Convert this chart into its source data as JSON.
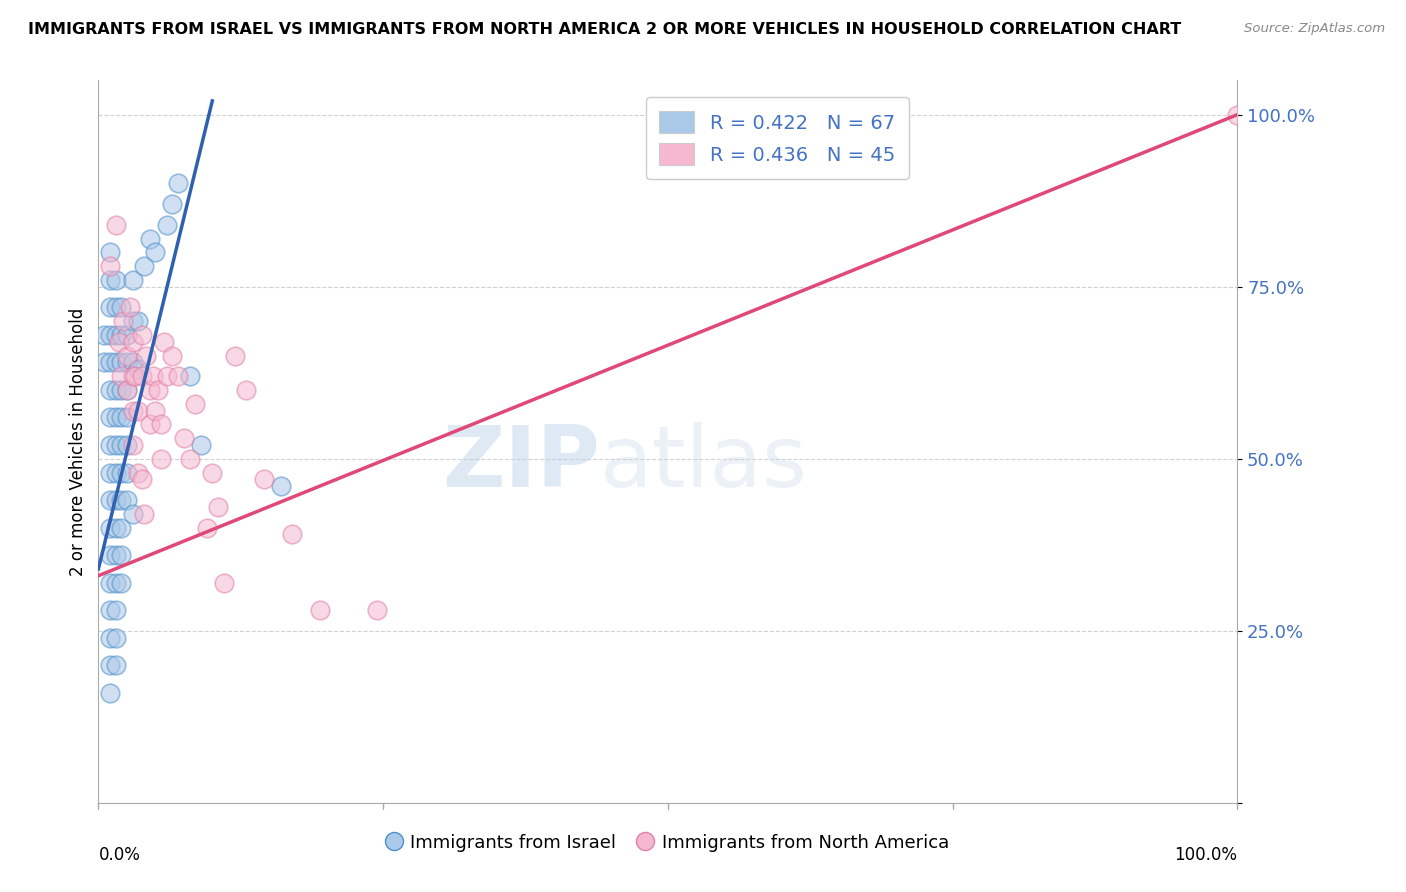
{
  "title": "IMMIGRANTS FROM ISRAEL VS IMMIGRANTS FROM NORTH AMERICA 2 OR MORE VEHICLES IN HOUSEHOLD CORRELATION CHART",
  "source": "Source: ZipAtlas.com",
  "ylabel": "2 or more Vehicles in Household",
  "watermark_zip": "ZIP",
  "watermark_atlas": "atlas",
  "legend1_label": "R = 0.422   N = 67",
  "legend2_label": "R = 0.436   N = 45",
  "legend1_color": "#aac8e8",
  "legend2_color": "#f5b8d0",
  "line1_color": "#3060b0",
  "line2_color": "#e04878",
  "scatter1_facecolor": "#aac8e8",
  "scatter2_facecolor": "#f5b8d0",
  "scatter1_edgecolor": "#5090c8",
  "scatter2_edgecolor": "#e080a8",
  "ytick_color": "#4472c4",
  "blue_points": [
    [
      0.005,
      0.68
    ],
    [
      0.005,
      0.64
    ],
    [
      0.01,
      0.8
    ],
    [
      0.01,
      0.76
    ],
    [
      0.01,
      0.72
    ],
    [
      0.01,
      0.68
    ],
    [
      0.01,
      0.64
    ],
    [
      0.01,
      0.6
    ],
    [
      0.01,
      0.56
    ],
    [
      0.01,
      0.52
    ],
    [
      0.01,
      0.48
    ],
    [
      0.01,
      0.44
    ],
    [
      0.01,
      0.4
    ],
    [
      0.01,
      0.36
    ],
    [
      0.01,
      0.32
    ],
    [
      0.01,
      0.28
    ],
    [
      0.01,
      0.24
    ],
    [
      0.01,
      0.2
    ],
    [
      0.01,
      0.16
    ],
    [
      0.015,
      0.76
    ],
    [
      0.015,
      0.72
    ],
    [
      0.015,
      0.68
    ],
    [
      0.015,
      0.64
    ],
    [
      0.015,
      0.6
    ],
    [
      0.015,
      0.56
    ],
    [
      0.015,
      0.52
    ],
    [
      0.015,
      0.48
    ],
    [
      0.015,
      0.44
    ],
    [
      0.015,
      0.4
    ],
    [
      0.015,
      0.36
    ],
    [
      0.015,
      0.32
    ],
    [
      0.015,
      0.28
    ],
    [
      0.015,
      0.24
    ],
    [
      0.015,
      0.2
    ],
    [
      0.02,
      0.72
    ],
    [
      0.02,
      0.68
    ],
    [
      0.02,
      0.64
    ],
    [
      0.02,
      0.6
    ],
    [
      0.02,
      0.56
    ],
    [
      0.02,
      0.52
    ],
    [
      0.02,
      0.48
    ],
    [
      0.02,
      0.44
    ],
    [
      0.02,
      0.4
    ],
    [
      0.02,
      0.36
    ],
    [
      0.02,
      0.32
    ],
    [
      0.025,
      0.68
    ],
    [
      0.025,
      0.64
    ],
    [
      0.025,
      0.6
    ],
    [
      0.025,
      0.56
    ],
    [
      0.025,
      0.52
    ],
    [
      0.025,
      0.48
    ],
    [
      0.025,
      0.44
    ],
    [
      0.03,
      0.76
    ],
    [
      0.03,
      0.7
    ],
    [
      0.03,
      0.64
    ],
    [
      0.03,
      0.42
    ],
    [
      0.035,
      0.7
    ],
    [
      0.035,
      0.63
    ],
    [
      0.04,
      0.78
    ],
    [
      0.045,
      0.82
    ],
    [
      0.05,
      0.8
    ],
    [
      0.06,
      0.84
    ],
    [
      0.065,
      0.87
    ],
    [
      0.07,
      0.9
    ],
    [
      0.08,
      0.62
    ],
    [
      0.09,
      0.52
    ],
    [
      0.16,
      0.46
    ]
  ],
  "pink_points": [
    [
      0.01,
      0.78
    ],
    [
      0.015,
      0.84
    ],
    [
      0.018,
      0.67
    ],
    [
      0.02,
      0.62
    ],
    [
      0.022,
      0.7
    ],
    [
      0.025,
      0.65
    ],
    [
      0.025,
      0.6
    ],
    [
      0.028,
      0.72
    ],
    [
      0.03,
      0.67
    ],
    [
      0.03,
      0.62
    ],
    [
      0.03,
      0.57
    ],
    [
      0.03,
      0.52
    ],
    [
      0.032,
      0.62
    ],
    [
      0.035,
      0.57
    ],
    [
      0.035,
      0.48
    ],
    [
      0.038,
      0.68
    ],
    [
      0.038,
      0.62
    ],
    [
      0.038,
      0.47
    ],
    [
      0.04,
      0.42
    ],
    [
      0.042,
      0.65
    ],
    [
      0.045,
      0.6
    ],
    [
      0.045,
      0.55
    ],
    [
      0.048,
      0.62
    ],
    [
      0.05,
      0.57
    ],
    [
      0.052,
      0.6
    ],
    [
      0.055,
      0.55
    ],
    [
      0.055,
      0.5
    ],
    [
      0.058,
      0.67
    ],
    [
      0.06,
      0.62
    ],
    [
      0.065,
      0.65
    ],
    [
      0.07,
      0.62
    ],
    [
      0.075,
      0.53
    ],
    [
      0.08,
      0.5
    ],
    [
      0.085,
      0.58
    ],
    [
      0.095,
      0.4
    ],
    [
      0.1,
      0.48
    ],
    [
      0.105,
      0.43
    ],
    [
      0.11,
      0.32
    ],
    [
      0.12,
      0.65
    ],
    [
      0.13,
      0.6
    ],
    [
      0.145,
      0.47
    ],
    [
      0.17,
      0.39
    ],
    [
      0.195,
      0.28
    ],
    [
      0.245,
      0.28
    ],
    [
      1.0,
      1.0
    ]
  ],
  "blue_line_x": [
    0.0,
    0.1
  ],
  "blue_line_y": [
    0.34,
    1.02
  ],
  "pink_line_x": [
    0.0,
    1.0
  ],
  "pink_line_y": [
    0.33,
    1.0
  ],
  "xlim": [
    0,
    1.0
  ],
  "ylim": [
    0.0,
    1.05
  ],
  "ytick_positions": [
    0.0,
    0.25,
    0.5,
    0.75,
    1.0
  ],
  "ytick_labels_right": [
    "",
    "25.0%",
    "50.0%",
    "75.0%",
    "100.0%"
  ],
  "grid_color": "#cccccc",
  "background_color": "#ffffff"
}
